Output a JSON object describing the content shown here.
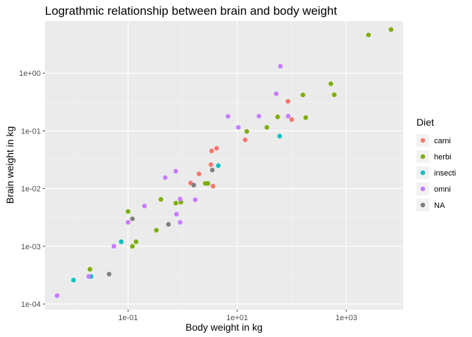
{
  "chart_data": {
    "type": "scatter",
    "title": "Lograthmic relationship between brain and body weight",
    "xlabel": "Body weight in kg",
    "ylabel": "Brain weight in kg",
    "xscale": "log10",
    "yscale": "log10",
    "xlim": [
      0.003,
      11000
    ],
    "ylim": [
      8e-05,
      8
    ],
    "xticks": [
      {
        "value": 0.1,
        "label": "1e-01"
      },
      {
        "value": 10,
        "label": "1e+01"
      },
      {
        "value": 1000,
        "label": "1e+03"
      }
    ],
    "yticks": [
      {
        "value": 0.0001,
        "label": "1e-04"
      },
      {
        "value": 0.001,
        "label": "1e-03"
      },
      {
        "value": 0.01,
        "label": "1e-02"
      },
      {
        "value": 0.1,
        "label": "1e-01"
      },
      {
        "value": 1,
        "label": "1e+00"
      }
    ],
    "grid": true,
    "legend": {
      "title": "Diet",
      "position": "right",
      "entries": [
        {
          "name": "carni",
          "color": "#F8766D"
        },
        {
          "name": "herbi",
          "color": "#7CAE00"
        },
        {
          "name": "insecti",
          "color": "#00BFC4"
        },
        {
          "name": "omni",
          "color": "#C77CFF"
        },
        {
          "name": "NA",
          "color": "#7F7F7F"
        }
      ]
    },
    "series": [
      {
        "name": "carni",
        "color": "#F8766D",
        "points": [
          {
            "x": 14,
            "y": 0.07
          },
          {
            "x": 3.4,
            "y": 0.045
          },
          {
            "x": 4.2,
            "y": 0.05
          },
          {
            "x": 3.3,
            "y": 0.026
          },
          {
            "x": 2.0,
            "y": 0.018
          },
          {
            "x": 1.4,
            "y": 0.0125
          },
          {
            "x": 3.6,
            "y": 0.011
          },
          {
            "x": 85,
            "y": 0.325
          },
          {
            "x": 100,
            "y": 0.157
          }
        ]
      },
      {
        "name": "herbi",
        "color": "#7CAE00",
        "points": [
          {
            "x": 6600,
            "y": 5.7
          },
          {
            "x": 2550,
            "y": 4.6
          },
          {
            "x": 520,
            "y": 0.655
          },
          {
            "x": 600,
            "y": 0.423
          },
          {
            "x": 160,
            "y": 0.42
          },
          {
            "x": 180,
            "y": 0.17
          },
          {
            "x": 55,
            "y": 0.175
          },
          {
            "x": 35,
            "y": 0.115
          },
          {
            "x": 15,
            "y": 0.098
          },
          {
            "x": 2.6,
            "y": 0.0123
          },
          {
            "x": 2.9,
            "y": 0.0123
          },
          {
            "x": 0.93,
            "y": 0.0058
          },
          {
            "x": 0.75,
            "y": 0.0056
          },
          {
            "x": 0.4,
            "y": 0.0065
          },
          {
            "x": 0.1,
            "y": 0.004
          },
          {
            "x": 0.12,
            "y": 0.001
          },
          {
            "x": 0.14,
            "y": 0.0012
          },
          {
            "x": 0.33,
            "y": 0.0019
          },
          {
            "x": 0.02,
            "y": 0.0004
          }
        ]
      },
      {
        "name": "insecti",
        "color": "#00BFC4",
        "points": [
          {
            "x": 60,
            "y": 0.081
          },
          {
            "x": 4.5,
            "y": 0.025
          },
          {
            "x": 0.075,
            "y": 0.0012
          },
          {
            "x": 0.01,
            "y": 0.00026
          },
          {
            "x": 0.021,
            "y": 0.0003
          }
        ]
      },
      {
        "name": "omni",
        "color": "#C77CFF",
        "points": [
          {
            "x": 62,
            "y": 1.32
          },
          {
            "x": 52,
            "y": 0.44
          },
          {
            "x": 86,
            "y": 0.18
          },
          {
            "x": 25,
            "y": 0.18
          },
          {
            "x": 6.8,
            "y": 0.179
          },
          {
            "x": 10.5,
            "y": 0.115
          },
          {
            "x": 0.75,
            "y": 0.02
          },
          {
            "x": 0.48,
            "y": 0.0155
          },
          {
            "x": 0.9,
            "y": 0.0066
          },
          {
            "x": 1.7,
            "y": 0.0064
          },
          {
            "x": 0.2,
            "y": 0.005
          },
          {
            "x": 0.77,
            "y": 0.0036
          },
          {
            "x": 0.9,
            "y": 0.0026
          },
          {
            "x": 0.1,
            "y": 0.0026
          },
          {
            "x": 0.055,
            "y": 0.001
          },
          {
            "x": 0.019,
            "y": 0.0003
          },
          {
            "x": 0.005,
            "y": 0.00014
          }
        ]
      },
      {
        "name": "NA",
        "color": "#7F7F7F",
        "points": [
          {
            "x": 3.5,
            "y": 0.021
          },
          {
            "x": 1.6,
            "y": 0.0115
          },
          {
            "x": 0.12,
            "y": 0.003
          },
          {
            "x": 0.55,
            "y": 0.0024
          },
          {
            "x": 0.045,
            "y": 0.00033
          }
        ]
      }
    ]
  }
}
